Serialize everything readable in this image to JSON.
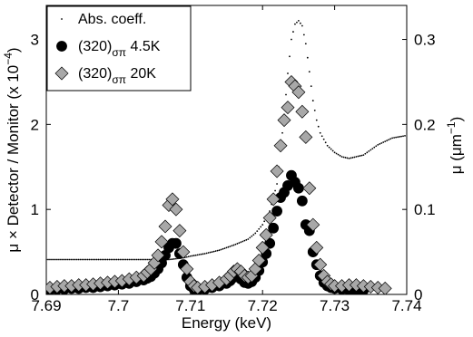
{
  "chart_data": {
    "type": "scatter",
    "xlabel": "Energy (keV)",
    "ylabel_left": "μ × Detector / Monitor (x 10",
    "ylabel_left_exp": "−4",
    "ylabel_left_close": ")",
    "ylabel_right": "μ (μm",
    "ylabel_right_exp": "−1",
    "ylabel_right_close": ")",
    "xlim": [
      7.69,
      7.74
    ],
    "ylim_left": [
      0,
      3.4
    ],
    "ylim_right": [
      0,
      0.34
    ],
    "x_ticks": [
      "7.69",
      "7.7",
      "7.71",
      "7.72",
      "7.73",
      "7.74"
    ],
    "x_tick_values": [
      7.69,
      7.7,
      7.71,
      7.72,
      7.73,
      7.74
    ],
    "y_left_ticks": [
      "0",
      "1",
      "2",
      "3"
    ],
    "y_left_tick_values": [
      0,
      1,
      2,
      3
    ],
    "y_right_ticks": [
      "0",
      "0.1",
      "0.2",
      "0.3"
    ],
    "y_right_tick_values": [
      0,
      0.1,
      0.2,
      0.3
    ],
    "legend": {
      "position": "top-left",
      "entries": [
        {
          "label": "Abs. coeff.",
          "sub": "",
          "suffix": "",
          "marker": "dot"
        },
        {
          "label": "(320)",
          "sub": "σπ",
          "suffix": " 4.5K",
          "marker": "circle"
        },
        {
          "label": "(320)",
          "sub": "σπ",
          "suffix": " 20K",
          "marker": "diamond"
        }
      ]
    },
    "series": [
      {
        "name": "Abs. coeff.",
        "axis": "right",
        "marker": "dot",
        "color": "#000000",
        "x": [
          7.69,
          7.695,
          7.7,
          7.703,
          7.705,
          7.707,
          7.708,
          7.709,
          7.71,
          7.712,
          7.714,
          7.716,
          7.718,
          7.719,
          7.72,
          7.721,
          7.722,
          7.7225,
          7.723,
          7.7235,
          7.724,
          7.7245,
          7.725,
          7.7255,
          7.726,
          7.7265,
          7.727,
          7.7275,
          7.728,
          7.729,
          7.73,
          7.731,
          7.732,
          7.734,
          7.736,
          7.738,
          7.74
        ],
        "y": [
          0.041,
          0.041,
          0.041,
          0.041,
          0.041,
          0.041,
          0.042,
          0.043,
          0.045,
          0.048,
          0.052,
          0.058,
          0.065,
          0.072,
          0.082,
          0.098,
          0.13,
          0.17,
          0.21,
          0.26,
          0.3,
          0.318,
          0.322,
          0.316,
          0.295,
          0.262,
          0.228,
          0.205,
          0.19,
          0.175,
          0.167,
          0.162,
          0.16,
          0.164,
          0.176,
          0.184,
          0.187
        ]
      },
      {
        "name": "(320)σπ 4.5K",
        "axis": "left",
        "marker": "circle",
        "color": "#000000",
        "x": [
          7.6905,
          7.6915,
          7.6925,
          7.6935,
          7.6945,
          7.6955,
          7.6965,
          7.6975,
          7.6985,
          7.6995,
          7.7005,
          7.7015,
          7.7025,
          7.7035,
          7.704,
          7.7045,
          7.705,
          7.7055,
          7.706,
          7.7065,
          7.707,
          7.7075,
          7.708,
          7.7085,
          7.709,
          7.7095,
          7.71,
          7.7105,
          7.711,
          7.712,
          7.713,
          7.714,
          7.715,
          7.7155,
          7.716,
          7.7165,
          7.717,
          7.7175,
          7.718,
          7.7185,
          7.719,
          7.7195,
          7.72,
          7.7205,
          7.721,
          7.7215,
          7.722,
          7.7225,
          7.723,
          7.7235,
          7.724,
          7.7245,
          7.725,
          7.7255,
          7.726,
          7.7265,
          7.727,
          7.7275,
          7.728,
          7.7285,
          7.729,
          7.7295,
          7.73,
          7.731,
          7.732,
          7.733,
          7.734
        ],
        "y": [
          0.05,
          0.06,
          0.06,
          0.07,
          0.07,
          0.08,
          0.08,
          0.09,
          0.1,
          0.11,
          0.12,
          0.13,
          0.15,
          0.17,
          0.19,
          0.21,
          0.25,
          0.3,
          0.37,
          0.46,
          0.55,
          0.6,
          0.6,
          0.48,
          0.35,
          0.2,
          0.1,
          0.06,
          0.05,
          0.06,
          0.08,
          0.1,
          0.13,
          0.16,
          0.2,
          0.22,
          0.18,
          0.14,
          0.13,
          0.15,
          0.2,
          0.28,
          0.38,
          0.48,
          0.6,
          0.78,
          0.98,
          1.14,
          1.2,
          1.28,
          1.4,
          1.32,
          1.25,
          1.1,
          0.82,
          0.75,
          0.5,
          0.35,
          0.22,
          0.14,
          0.1,
          0.08,
          0.07,
          0.06,
          0.05,
          0.05,
          0.05
        ]
      },
      {
        "name": "(320)σπ 20K",
        "axis": "left",
        "marker": "diamond",
        "color": "#a8a8a8",
        "x": [
          7.6905,
          7.6915,
          7.6925,
          7.6935,
          7.6945,
          7.6955,
          7.6965,
          7.6975,
          7.6985,
          7.6995,
          7.7005,
          7.7015,
          7.7025,
          7.7035,
          7.704,
          7.7045,
          7.705,
          7.7055,
          7.706,
          7.7065,
          7.707,
          7.7075,
          7.708,
          7.7085,
          7.709,
          7.7095,
          7.71,
          7.7105,
          7.711,
          7.712,
          7.713,
          7.714,
          7.715,
          7.7155,
          7.716,
          7.7165,
          7.717,
          7.7175,
          7.718,
          7.7185,
          7.719,
          7.7195,
          7.72,
          7.7205,
          7.721,
          7.7215,
          7.722,
          7.7225,
          7.723,
          7.7235,
          7.724,
          7.7245,
          7.725,
          7.7255,
          7.726,
          7.7265,
          7.727,
          7.7275,
          7.728,
          7.7285,
          7.729,
          7.7295,
          7.73,
          7.731,
          7.732,
          7.733,
          7.734,
          7.735,
          7.736,
          7.737
        ],
        "y": [
          0.08,
          0.09,
          0.1,
          0.1,
          0.11,
          0.11,
          0.12,
          0.13,
          0.14,
          0.15,
          0.16,
          0.18,
          0.2,
          0.22,
          0.26,
          0.3,
          0.37,
          0.46,
          0.62,
          0.8,
          1.05,
          1.12,
          1.0,
          0.75,
          0.5,
          0.3,
          0.15,
          0.1,
          0.08,
          0.09,
          0.11,
          0.14,
          0.18,
          0.22,
          0.27,
          0.3,
          0.27,
          0.22,
          0.2,
          0.22,
          0.3,
          0.4,
          0.55,
          0.7,
          0.9,
          1.12,
          1.45,
          1.75,
          2.05,
          2.2,
          2.5,
          2.45,
          2.38,
          2.15,
          1.85,
          1.25,
          0.82,
          0.55,
          0.35,
          0.22,
          0.15,
          0.12,
          0.1,
          0.1,
          0.11,
          0.11,
          0.1,
          0.09,
          0.08,
          0.07
        ]
      }
    ]
  }
}
